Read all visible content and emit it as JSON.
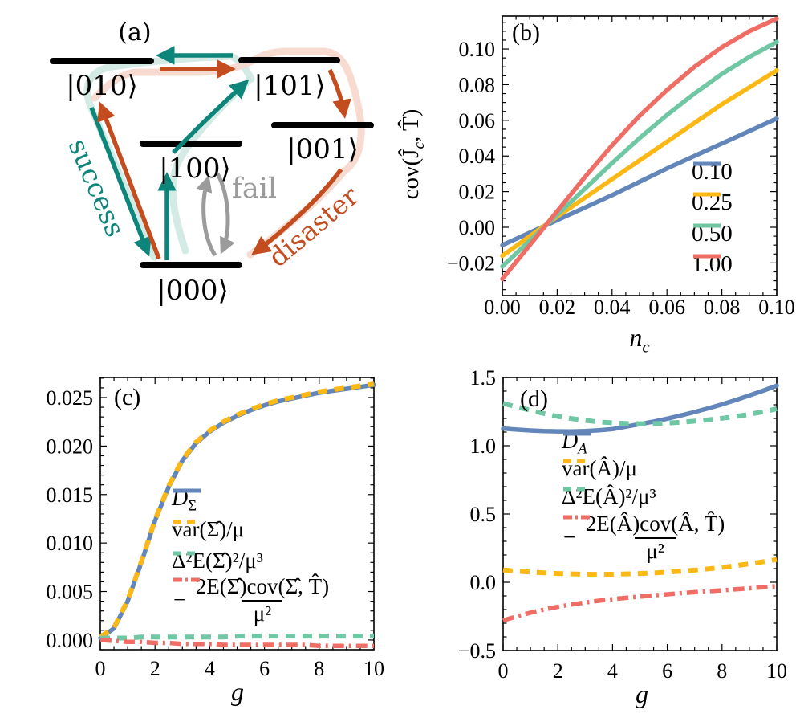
{
  "figure": {
    "panel_a": {
      "tag": "(a)",
      "states": [
        {
          "id": "010",
          "label": "|010⟩"
        },
        {
          "id": "101",
          "label": "|101⟩"
        },
        {
          "id": "100",
          "label": "|100⟩"
        },
        {
          "id": "001",
          "label": "|001⟩"
        },
        {
          "id": "000",
          "label": "|000⟩"
        }
      ],
      "edge_labels": {
        "success": "success",
        "fail": "fail",
        "disaster": "disaster"
      },
      "colors": {
        "teal": "#0e857b",
        "orange": "#c44d20",
        "gray": "#9b9b9b",
        "faded_teal": "#cfe8e2",
        "faded_pink": "#f6d7cc",
        "level": "#000000"
      }
    }
  },
  "chart_data": [
    {
      "id": "b",
      "type": "line",
      "panel_tag": "(b)",
      "xlabel": {
        "main": "n",
        "sub": "c"
      },
      "ylabel": {
        "pre": "cov(Ĵ",
        "sub": "c",
        "post": ", T̂)"
      },
      "xlim": [
        0,
        0.1
      ],
      "ylim": [
        -0.0383,
        0.1185
      ],
      "grid": false,
      "legend_position": "right-center",
      "xticks": {
        "values": [
          0,
          0.02,
          0.04,
          0.06,
          0.08,
          0.1
        ],
        "labels": [
          "0.00",
          "0.02",
          "0.04",
          "0.06",
          "0.08",
          "0.10"
        ],
        "minor_step": 0.005
      },
      "yticks": {
        "values": [
          -0.02,
          0,
          0.02,
          0.04,
          0.06,
          0.08,
          0.1
        ],
        "labels": [
          "−0.02",
          "0.00",
          "0.02",
          "0.04",
          "0.06",
          "0.08",
          "0.10"
        ],
        "minor_step": 0.005
      },
      "x": [
        0,
        0.01,
        0.02,
        0.03,
        0.04,
        0.05,
        0.06,
        0.07,
        0.08,
        0.09,
        0.1
      ],
      "series": [
        {
          "name": "0.10",
          "color": "#6286b9",
          "style": "solid",
          "y": [
            -0.01,
            -0.003,
            0.004,
            0.011,
            0.018,
            0.0255,
            0.033,
            0.04,
            0.047,
            0.054,
            0.061
          ]
        },
        {
          "name": "0.25",
          "color": "#fcb814",
          "style": "solid",
          "y": [
            -0.016,
            -0.005,
            0.006,
            0.0165,
            0.027,
            0.0375,
            0.048,
            0.0585,
            0.069,
            0.0785,
            0.088
          ]
        },
        {
          "name": "0.50",
          "color": "#6fc7a3",
          "style": "solid",
          "y": [
            -0.022,
            -0.0075,
            0.007,
            0.0215,
            0.036,
            0.05,
            0.063,
            0.075,
            0.086,
            0.0955,
            0.104
          ]
        },
        {
          "name": "1.00",
          "color": "#ee6e66",
          "style": "solid",
          "y": [
            -0.029,
            -0.01,
            0.009,
            0.028,
            0.046,
            0.0625,
            0.077,
            0.09,
            0.101,
            0.11,
            0.117
          ]
        }
      ],
      "legend": {
        "entries": [
          {
            "label": "0.10",
            "color": "#6286b9",
            "style": "solid"
          },
          {
            "label": "0.25",
            "color": "#fcb814",
            "style": "solid"
          },
          {
            "label": "0.50",
            "color": "#6fc7a3",
            "style": "solid"
          },
          {
            "label": "1.00",
            "color": "#ee6e66",
            "style": "solid"
          }
        ]
      }
    },
    {
      "id": "c",
      "type": "line",
      "panel_tag": "(c)",
      "xlabel": {
        "main": "g"
      },
      "xlim": [
        0,
        10
      ],
      "ylim": [
        -0.001,
        0.02707
      ],
      "grid": false,
      "legend_position": "inside-right",
      "xticks": {
        "values": [
          0,
          2,
          4,
          6,
          8,
          10
        ],
        "labels": [
          "0",
          "2",
          "4",
          "6",
          "8",
          "10"
        ],
        "minor_step": 0.5
      },
      "yticks": {
        "values": [
          0,
          0.005,
          0.01,
          0.015,
          0.02,
          0.025
        ],
        "labels": [
          "0.000",
          "0.005",
          "0.010",
          "0.015",
          "0.020",
          "0.025"
        ],
        "minor_step": 0.001
      },
      "x": [
        0,
        0.5,
        1,
        1.5,
        2,
        2.5,
        3,
        3.5,
        4,
        4.5,
        5,
        5.5,
        6,
        6.5,
        7,
        7.5,
        8,
        8.5,
        9,
        9.5,
        10
      ],
      "series": [
        {
          "name": "D_Σ",
          "color": "#6286b9",
          "style": "solid",
          "y": [
            0.0002,
            0.0012,
            0.004,
            0.008,
            0.0123,
            0.0158,
            0.0185,
            0.0203,
            0.0215,
            0.0224,
            0.0231,
            0.0237,
            0.0242,
            0.0246,
            0.0249,
            0.0252,
            0.0255,
            0.0257,
            0.0259,
            0.0261,
            0.0263
          ]
        },
        {
          "name": "var(Σ̂)/μ",
          "color": "#fcb814",
          "style": "dashed",
          "y": [
            0.0003,
            0.0013,
            0.0041,
            0.0081,
            0.0124,
            0.0159,
            0.0186,
            0.0204,
            0.0216,
            0.0225,
            0.0232,
            0.0238,
            0.0243,
            0.0247,
            0.025,
            0.0253,
            0.0256,
            0.0258,
            0.026,
            0.0262,
            0.0264
          ]
        },
        {
          "name": "Δ²E(Σ̂)²/μ³",
          "color": "#6fc7a3",
          "style": "dashed",
          "y": [
            0.0002,
            0.0002,
            0.0002,
            0.0003,
            0.0003,
            0.0003,
            0.0003,
            0.0003,
            0.0003,
            0.0003,
            0.0004,
            0.0004,
            0.0004,
            0.0004,
            0.0004,
            0.0004,
            0.0004,
            0.0004,
            0.0004,
            0.0004,
            0.0004
          ]
        },
        {
          "name": "−2E(Σ̂)cov(Σ̂,T̂)/μ²",
          "color": "#ee6e66",
          "style": "dashdot",
          "y": [
            0,
            -0.0001,
            -0.0002,
            -0.0002,
            -0.0003,
            -0.0003,
            -0.0004,
            -0.0004,
            -0.0004,
            -0.0005,
            -0.0005,
            -0.0005,
            -0.0005,
            -0.0005,
            -0.0005,
            -0.0005,
            -0.0006,
            -0.0006,
            -0.0006,
            -0.0006,
            -0.0006
          ]
        }
      ],
      "legend": {
        "entries": [
          {
            "type": "sub",
            "main": "D",
            "sub": "Σ",
            "color": "#6286b9",
            "style": "solid"
          },
          {
            "type": "text",
            "text": "var(Σ̂)/μ",
            "color": "#fcb814",
            "style": "dashed"
          },
          {
            "type": "text",
            "text": "Δ²E(Σ̂)²/μ³",
            "color": "#6fc7a3",
            "style": "dashed"
          },
          {
            "type": "frac",
            "prefix": "−",
            "numerator": "2E(Σ̂)cov(Σ̂, T̂)",
            "denominator": "μ²",
            "color": "#ee6e66",
            "style": "dashdot"
          }
        ]
      }
    },
    {
      "id": "d",
      "type": "line",
      "panel_tag": "(d)",
      "xlabel": {
        "main": "g"
      },
      "xlim": [
        0,
        10
      ],
      "ylim": [
        -0.5,
        1.5
      ],
      "grid": false,
      "legend_position": "inside-center",
      "xticks": {
        "values": [
          0,
          2,
          4,
          6,
          8,
          10
        ],
        "labels": [
          "0",
          "2",
          "4",
          "6",
          "8",
          "10"
        ],
        "minor_step": 0.5
      },
      "yticks": {
        "values": [
          -0.5,
          0,
          0.5,
          1,
          1.5
        ],
        "labels": [
          "−0.5",
          "0.0",
          "0.5",
          "1.0",
          "1.5"
        ],
        "minor_step": 0.1
      },
      "x": [
        0,
        0.5,
        1,
        1.5,
        2,
        2.5,
        3,
        3.5,
        4,
        4.5,
        5,
        5.5,
        6,
        6.5,
        7,
        7.5,
        8,
        8.5,
        9,
        9.5,
        10
      ],
      "series": [
        {
          "name": "D_A",
          "color": "#6286b9",
          "style": "solid",
          "y": [
            1.126,
            1.118,
            1.112,
            1.107,
            1.105,
            1.104,
            1.107,
            1.113,
            1.122,
            1.14,
            1.158,
            1.177,
            1.198,
            1.222,
            1.247,
            1.274,
            1.303,
            1.335,
            1.368,
            1.403,
            1.44
          ]
        },
        {
          "name": "var(Â)/μ",
          "color": "#fcb814",
          "style": "dashed",
          "y": [
            0.09,
            0.082,
            0.075,
            0.069,
            0.064,
            0.061,
            0.059,
            0.058,
            0.059,
            0.061,
            0.064,
            0.068,
            0.074,
            0.081,
            0.089,
            0.098,
            0.109,
            0.121,
            0.135,
            0.15,
            0.167
          ]
        },
        {
          "name": "Δ²E(Â)²/μ³",
          "color": "#6fc7a3",
          "style": "dashed",
          "y": [
            1.31,
            1.285,
            1.26,
            1.236,
            1.215,
            1.199,
            1.185,
            1.175,
            1.168,
            1.163,
            1.161,
            1.162,
            1.166,
            1.172,
            1.18,
            1.19,
            1.201,
            1.214,
            1.23,
            1.249,
            1.27
          ]
        },
        {
          "name": "−2E(Â)cov(Â,T̂)/μ²",
          "color": "#ee6e66",
          "style": "dashdot",
          "y": [
            -0.28,
            -0.25,
            -0.223,
            -0.2,
            -0.18,
            -0.163,
            -0.148,
            -0.135,
            -0.124,
            -0.114,
            -0.105,
            -0.096,
            -0.088,
            -0.08,
            -0.073,
            -0.066,
            -0.059,
            -0.052,
            -0.045,
            -0.037,
            -0.028
          ]
        }
      ],
      "legend": {
        "entries": [
          {
            "type": "sub",
            "main": "D",
            "sub": "A",
            "color": "#6286b9",
            "style": "solid"
          },
          {
            "type": "text",
            "text": "var(Â)/μ",
            "color": "#fcb814",
            "style": "dashed"
          },
          {
            "type": "text",
            "text": "Δ²E(Â)²/μ³",
            "color": "#6fc7a3",
            "style": "dashed"
          },
          {
            "type": "frac",
            "prefix": "−",
            "numerator": "2E(Â)cov(Â, T̂)",
            "denominator": "μ²",
            "color": "#ee6e66",
            "style": "dashdot"
          }
        ]
      }
    }
  ]
}
